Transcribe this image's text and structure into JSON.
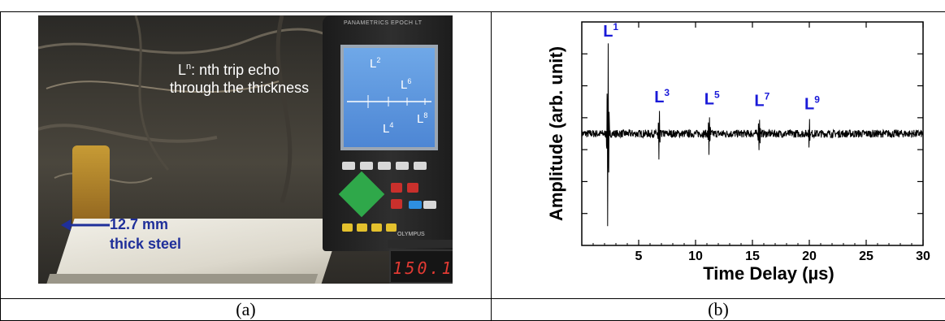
{
  "figure": {
    "left_caption": "(a)",
    "right_caption": "(b)"
  },
  "photo": {
    "annotation_line1_base": "L",
    "annotation_line1_sup": "n",
    "annotation_line1_rest": ": nth trip echo",
    "annotation_line2": "through the thickness",
    "steel_label_line1": "12.7 mm",
    "steel_label_line2": "thick steel",
    "device_brand": "PANAMETRICS  EPOCH LT",
    "device_maker": "OLYMPUS",
    "readout_value": "150.1",
    "screen_labels": [
      {
        "base": "L",
        "sup": "2"
      },
      {
        "base": "L",
        "sup": "6"
      },
      {
        "base": "L",
        "sup": "4"
      },
      {
        "base": "L",
        "sup": "8"
      }
    ]
  },
  "chart_data": {
    "type": "line",
    "title": "",
    "xlabel": "Time Delay (µs)",
    "ylabel": "Amplitude (arb. unit)",
    "xlim": [
      0,
      30
    ],
    "x_ticks": [
      5,
      10,
      15,
      20,
      25,
      30
    ],
    "y_ticks_count": 7,
    "grid": false,
    "series": [
      {
        "color": "#000000",
        "echo_peaks": [
          {
            "x": 2.3,
            "up": 1.0,
            "down": -1.0
          },
          {
            "x": 6.8,
            "up": 0.22,
            "down": -0.3
          },
          {
            "x": 11.2,
            "up": 0.2,
            "down": -0.22
          },
          {
            "x": 15.6,
            "up": 0.18,
            "down": -0.16
          },
          {
            "x": 20.0,
            "up": 0.15,
            "down": -0.13
          }
        ],
        "noise_amplitude": 0.04
      }
    ],
    "annotations": [
      {
        "base": "L",
        "sup": "1",
        "x": 2.3
      },
      {
        "base": "L",
        "sup": "3",
        "x": 6.8
      },
      {
        "base": "L",
        "sup": "5",
        "x": 11.2
      },
      {
        "base": "L",
        "sup": "7",
        "x": 15.6
      },
      {
        "base": "L",
        "sup": "9",
        "x": 20.0
      }
    ]
  }
}
